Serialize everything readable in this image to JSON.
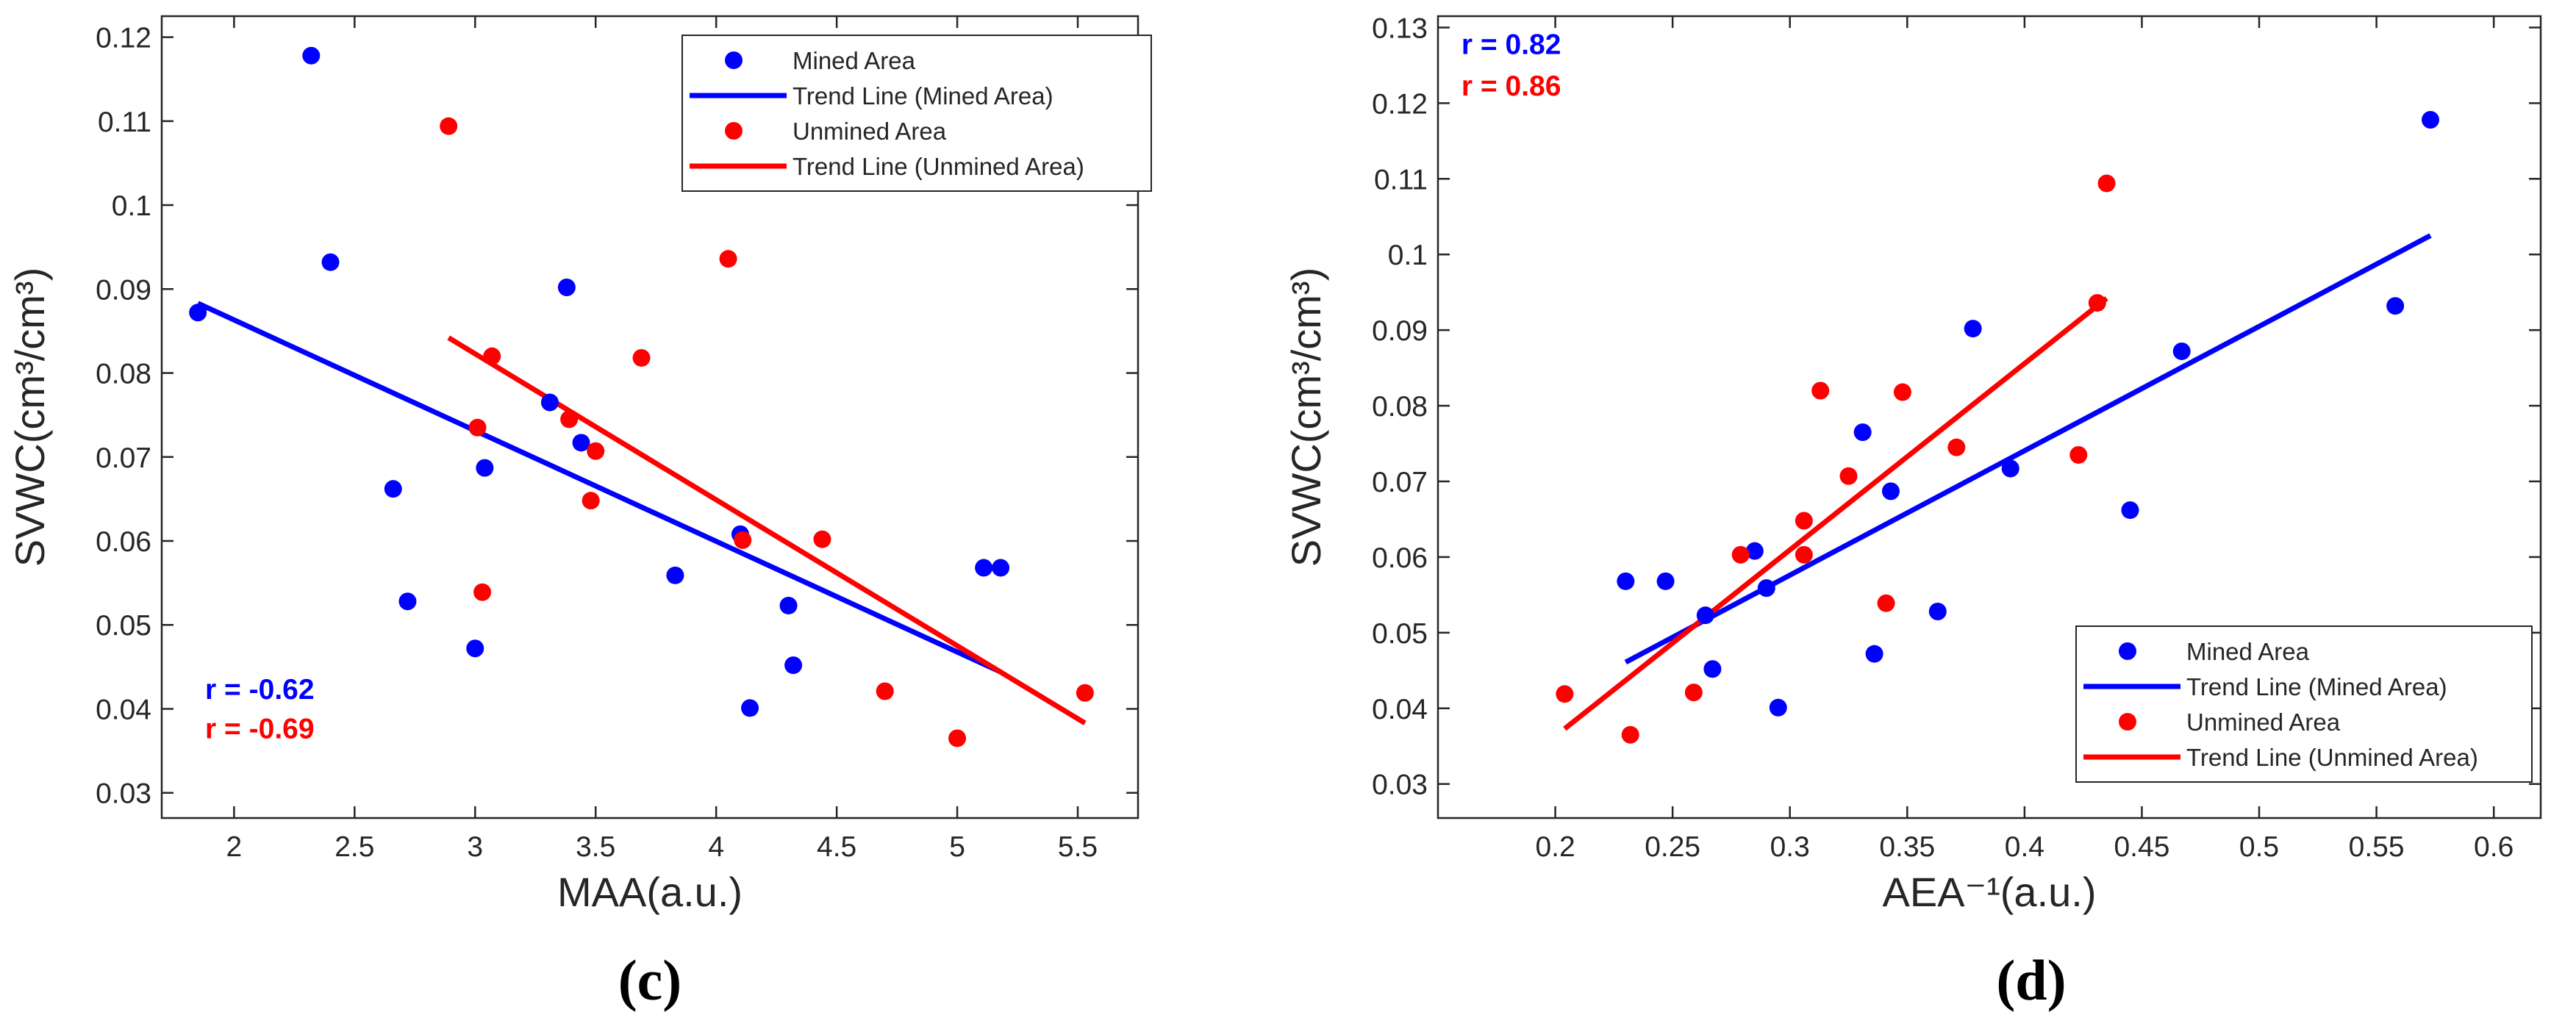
{
  "chart_data": [
    {
      "type": "scatter",
      "panel_label": "(c)",
      "xlabel": "MAA(a.u.)",
      "ylabel": "SVWC(cm³/cm³)",
      "xlim": [
        1.7,
        5.75
      ],
      "ylim": [
        0.027,
        0.1225
      ],
      "xticks": [
        2,
        2.5,
        3,
        3.5,
        4,
        4.5,
        5,
        5.5
      ],
      "xtick_labels": [
        "2",
        "2.5",
        "3",
        "3.5",
        "4",
        "4.5",
        "5",
        "5.5"
      ],
      "yticks": [
        0.03,
        0.04,
        0.05,
        0.06,
        0.07,
        0.08,
        0.09,
        0.1,
        0.11,
        0.12
      ],
      "ytick_labels": [
        "0.03",
        "0.04",
        "0.05",
        "0.06",
        "0.07",
        "0.08",
        "0.09",
        "0.1",
        "0.11",
        "0.12"
      ],
      "legend_position": "top-right",
      "series": [
        {
          "name": "Mined Area",
          "color": "#0000ff",
          "kind": "scatter",
          "points": [
            [
              1.85,
              0.0872
            ],
            [
              2.32,
              0.1178
            ],
            [
              2.4,
              0.0932
            ],
            [
              2.66,
              0.0662
            ],
            [
              2.72,
              0.0528
            ],
            [
              3.0,
              0.0472
            ],
            [
              3.04,
              0.0687
            ],
            [
              3.31,
              0.0765
            ],
            [
              3.38,
              0.0902
            ],
            [
              3.44,
              0.0717
            ],
            [
              3.83,
              0.0559
            ],
            [
              4.1,
              0.0608
            ],
            [
              4.14,
              0.0401
            ],
            [
              4.3,
              0.0523
            ],
            [
              4.32,
              0.0452
            ],
            [
              5.11,
              0.0568
            ],
            [
              5.18,
              0.0568
            ]
          ]
        },
        {
          "name": "Trend Line (Mined Area)",
          "color": "#0000ff",
          "kind": "line",
          "points": [
            [
              1.85,
              0.0883
            ],
            [
              5.18,
              0.0444
            ]
          ]
        },
        {
          "name": "Unmined Area",
          "color": "#ff0000",
          "kind": "scatter",
          "points": [
            [
              2.89,
              0.1094
            ],
            [
              3.01,
              0.0735
            ],
            [
              3.03,
              0.0539
            ],
            [
              3.07,
              0.082
            ],
            [
              3.39,
              0.0745
            ],
            [
              3.48,
              0.0648
            ],
            [
              3.5,
              0.0707
            ],
            [
              3.69,
              0.0818
            ],
            [
              4.05,
              0.0936
            ],
            [
              4.11,
              0.0601
            ],
            [
              4.44,
              0.0602
            ],
            [
              4.7,
              0.0421
            ],
            [
              5.0,
              0.0365
            ],
            [
              5.53,
              0.0419
            ]
          ]
        },
        {
          "name": "Trend Line (Unmined Area)",
          "color": "#ff0000",
          "kind": "line",
          "points": [
            [
              2.89,
              0.0842
            ],
            [
              5.53,
              0.0383
            ]
          ]
        }
      ],
      "annotations": [
        {
          "text": "r = -0.62",
          "color": "#0000ff",
          "pos": [
            1.88,
            0.0412
          ]
        },
        {
          "text": "r = -0.69",
          "color": "#ff0000",
          "pos": [
            1.88,
            0.0365
          ]
        }
      ]
    },
    {
      "type": "scatter",
      "panel_label": "(d)",
      "xlabel": "AEA⁻¹(a.u.)",
      "ylabel": "SVWC(cm³/cm³)",
      "xlim": [
        0.15,
        0.62
      ],
      "ylim": [
        0.0255,
        0.1315
      ],
      "xticks": [
        0.2,
        0.25,
        0.3,
        0.35,
        0.4,
        0.45,
        0.5,
        0.55,
        0.6
      ],
      "xtick_labels": [
        "0.2",
        "0.25",
        "0.3",
        "0.35",
        "0.4",
        "0.45",
        "0.5",
        "0.55",
        "0.6"
      ],
      "yticks": [
        0.03,
        0.04,
        0.05,
        0.06,
        0.07,
        0.08,
        0.09,
        0.1,
        0.11,
        0.12,
        0.13
      ],
      "ytick_labels": [
        "0.03",
        "0.04",
        "0.05",
        "0.06",
        "0.07",
        "0.08",
        "0.09",
        "0.1",
        "0.11",
        "0.12",
        "0.13"
      ],
      "legend_position": "bottom-right",
      "series": [
        {
          "name": "Mined Area",
          "color": "#0000ff",
          "kind": "scatter",
          "points": [
            [
              0.23,
              0.0568
            ],
            [
              0.247,
              0.0568
            ],
            [
              0.264,
              0.0523
            ],
            [
              0.267,
              0.0452
            ],
            [
              0.285,
              0.0608
            ],
            [
              0.29,
              0.0559
            ],
            [
              0.295,
              0.0401
            ],
            [
              0.331,
              0.0765
            ],
            [
              0.336,
              0.0472
            ],
            [
              0.343,
              0.0687
            ],
            [
              0.363,
              0.0528
            ],
            [
              0.378,
              0.0902
            ],
            [
              0.394,
              0.0717
            ],
            [
              0.445,
              0.0662
            ],
            [
              0.467,
              0.0872
            ],
            [
              0.558,
              0.0932
            ],
            [
              0.573,
              0.1178
            ]
          ]
        },
        {
          "name": "Trend Line (Mined Area)",
          "color": "#0000ff",
          "kind": "line",
          "points": [
            [
              0.23,
              0.0461
            ],
            [
              0.573,
              0.1025
            ]
          ]
        },
        {
          "name": "Unmined Area",
          "color": "#ff0000",
          "kind": "scatter",
          "points": [
            [
              0.204,
              0.0419
            ],
            [
              0.232,
              0.0365
            ],
            [
              0.259,
              0.0421
            ],
            [
              0.279,
              0.0603
            ],
            [
              0.306,
              0.0648
            ],
            [
              0.306,
              0.0603
            ],
            [
              0.313,
              0.082
            ],
            [
              0.325,
              0.0707
            ],
            [
              0.341,
              0.0539
            ],
            [
              0.348,
              0.0818
            ],
            [
              0.371,
              0.0745
            ],
            [
              0.423,
              0.0735
            ],
            [
              0.431,
              0.0936
            ],
            [
              0.435,
              0.1094
            ]
          ]
        },
        {
          "name": "Trend Line (Unmined Area)",
          "color": "#ff0000",
          "kind": "line",
          "points": [
            [
              0.204,
              0.0373
            ],
            [
              0.435,
              0.0942
            ]
          ]
        }
      ],
      "annotations": [
        {
          "text": "r = 0.82",
          "color": "#0000ff",
          "pos": [
            0.16,
            0.1265
          ]
        },
        {
          "text": "r = 0.86",
          "color": "#ff0000",
          "pos": [
            0.16,
            0.121
          ]
        }
      ]
    }
  ]
}
